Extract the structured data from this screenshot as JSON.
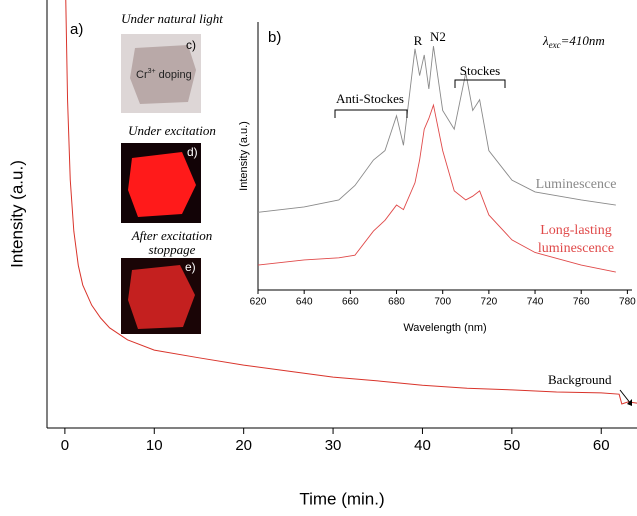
{
  "chart_data": [
    {
      "type": "line",
      "xlabel": "Time (min.)",
      "ylabel": "Intensity (a.u.)",
      "xlim": [
        -2,
        64
      ],
      "ylim": [
        0,
        100
      ],
      "xticks": [
        0,
        10,
        20,
        30,
        40,
        50,
        60
      ],
      "x": [
        0.1,
        0.3,
        0.6,
        1,
        1.5,
        2,
        3,
        4,
        5,
        7,
        10,
        15,
        20,
        25,
        30,
        35,
        40,
        45,
        50,
        55,
        60,
        62,
        62.3,
        63,
        64
      ],
      "series": [
        {
          "color": "#d9342b",
          "values": [
            100,
            76.6,
            58,
            46,
            38,
            33.4,
            28.7,
            25.7,
            23.4,
            20.6,
            18.2,
            16.4,
            14.7,
            13.3,
            11.9,
            11,
            10,
            9.3,
            8.9,
            8.4,
            8.2,
            7.9,
            5.6,
            6.1,
            5.8
          ]
        }
      ],
      "annotations": {
        "a": "a)",
        "c": "c)",
        "d": "d)",
        "e": "e)",
        "natural": "Under natural light",
        "cr": "Cr",
        "cr_sup": "3+",
        "doping": " doping",
        "excitation": "Under excitation",
        "stoppage": "After excitation stoppage",
        "background": "Background"
      }
    },
    {
      "type": "line",
      "xlabel": "Wavelength (nm)",
      "ylabel": "Intensity (a.u.)",
      "xlim": [
        620,
        782
      ],
      "ylim": [
        0,
        100
      ],
      "xticks": [
        620,
        640,
        660,
        680,
        700,
        720,
        740,
        760,
        780
      ],
      "x": [
        620,
        640,
        655,
        662,
        670,
        675,
        680,
        683,
        688,
        690,
        692,
        694,
        696,
        700,
        705,
        710,
        713,
        716,
        720,
        730,
        740,
        760,
        775
      ],
      "series": [
        {
          "name": "Luminescence",
          "color": "#8a8a8a",
          "values": [
            29,
            31,
            33.6,
            39,
            48.5,
            52,
            65,
            54,
            90,
            80,
            87.7,
            75,
            91,
            67,
            60,
            81,
            67,
            71,
            52,
            41,
            36.6,
            33.6,
            31.7
          ]
        },
        {
          "name": "Long-lasting luminescence",
          "color": "#e04a4a",
          "values": [
            9.3,
            11.2,
            12,
            13,
            22,
            26,
            31.7,
            30,
            40,
            48.5,
            60,
            64,
            69,
            52,
            37,
            33.6,
            35,
            37,
            28,
            18.7,
            14,
            9.3,
            6.7
          ]
        }
      ],
      "annotations": {
        "b": "b)",
        "r": "R",
        "n2": "N2",
        "anti": "Anti-Stockes",
        "stokes": "Stockes",
        "lambda": "λ",
        "lambda_sub": "exc",
        "lambda_rest": "=410nm"
      }
    }
  ]
}
